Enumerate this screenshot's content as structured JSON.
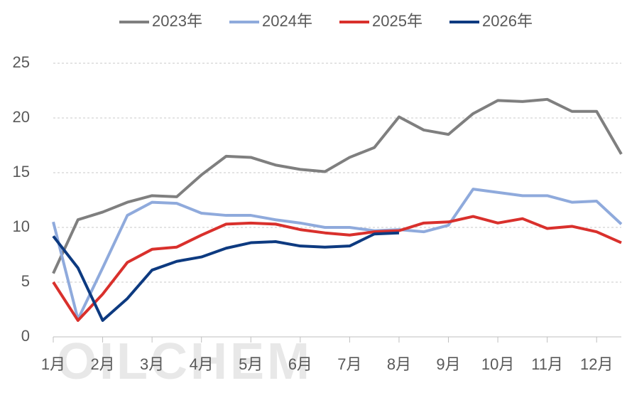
{
  "chart_data": {
    "type": "line",
    "watermark": "OILCHEM",
    "categories": [
      "1月",
      null,
      "2月",
      null,
      "3月",
      null,
      "4月",
      null,
      "5月",
      null,
      "6月",
      null,
      "7月",
      null,
      "8月",
      null,
      "9月",
      null,
      "10月",
      null,
      "11月",
      null,
      "12月",
      null
    ],
    "series": [
      {
        "name": "2023年",
        "color": "#7f7f7f",
        "values": [
          5.8,
          10.7,
          11.4,
          12.3,
          12.9,
          12.8,
          14.8,
          16.5,
          16.4,
          15.7,
          15.3,
          15.1,
          16.4,
          17.3,
          20.1,
          18.9,
          18.5,
          20.4,
          21.6,
          21.5,
          21.7,
          20.6,
          20.6,
          16.7
        ]
      },
      {
        "name": "2024年",
        "color": "#8faadc",
        "values": [
          10.5,
          1.6,
          6.3,
          11.1,
          12.3,
          12.2,
          11.3,
          11.1,
          11.1,
          10.7,
          10.4,
          10.0,
          10.0,
          9.7,
          9.8,
          9.6,
          10.2,
          13.5,
          13.2,
          12.9,
          12.9,
          12.3,
          12.4,
          10.3
        ]
      },
      {
        "name": "2025年",
        "color": "#d9302c",
        "values": [
          5.0,
          1.5,
          3.9,
          6.8,
          8.0,
          8.2,
          9.3,
          10.3,
          10.4,
          10.3,
          9.8,
          9.5,
          9.3,
          9.6,
          9.7,
          10.4,
          10.5,
          11.0,
          10.4,
          10.8,
          9.9,
          10.1,
          9.6,
          8.6
        ]
      },
      {
        "name": "2026年",
        "color": "#0d3a80",
        "values": [
          9.2,
          6.3,
          1.5,
          3.5,
          6.1,
          6.9,
          7.3,
          8.1,
          8.6,
          8.7,
          8.3,
          8.2,
          8.3,
          9.4,
          9.5,
          null,
          null,
          null,
          null,
          null,
          null,
          null,
          null,
          null
        ]
      }
    ],
    "ylim": [
      0,
      25
    ],
    "yticks": [
      0,
      5,
      10,
      15,
      20,
      25
    ],
    "grid": true,
    "legend": "top"
  }
}
